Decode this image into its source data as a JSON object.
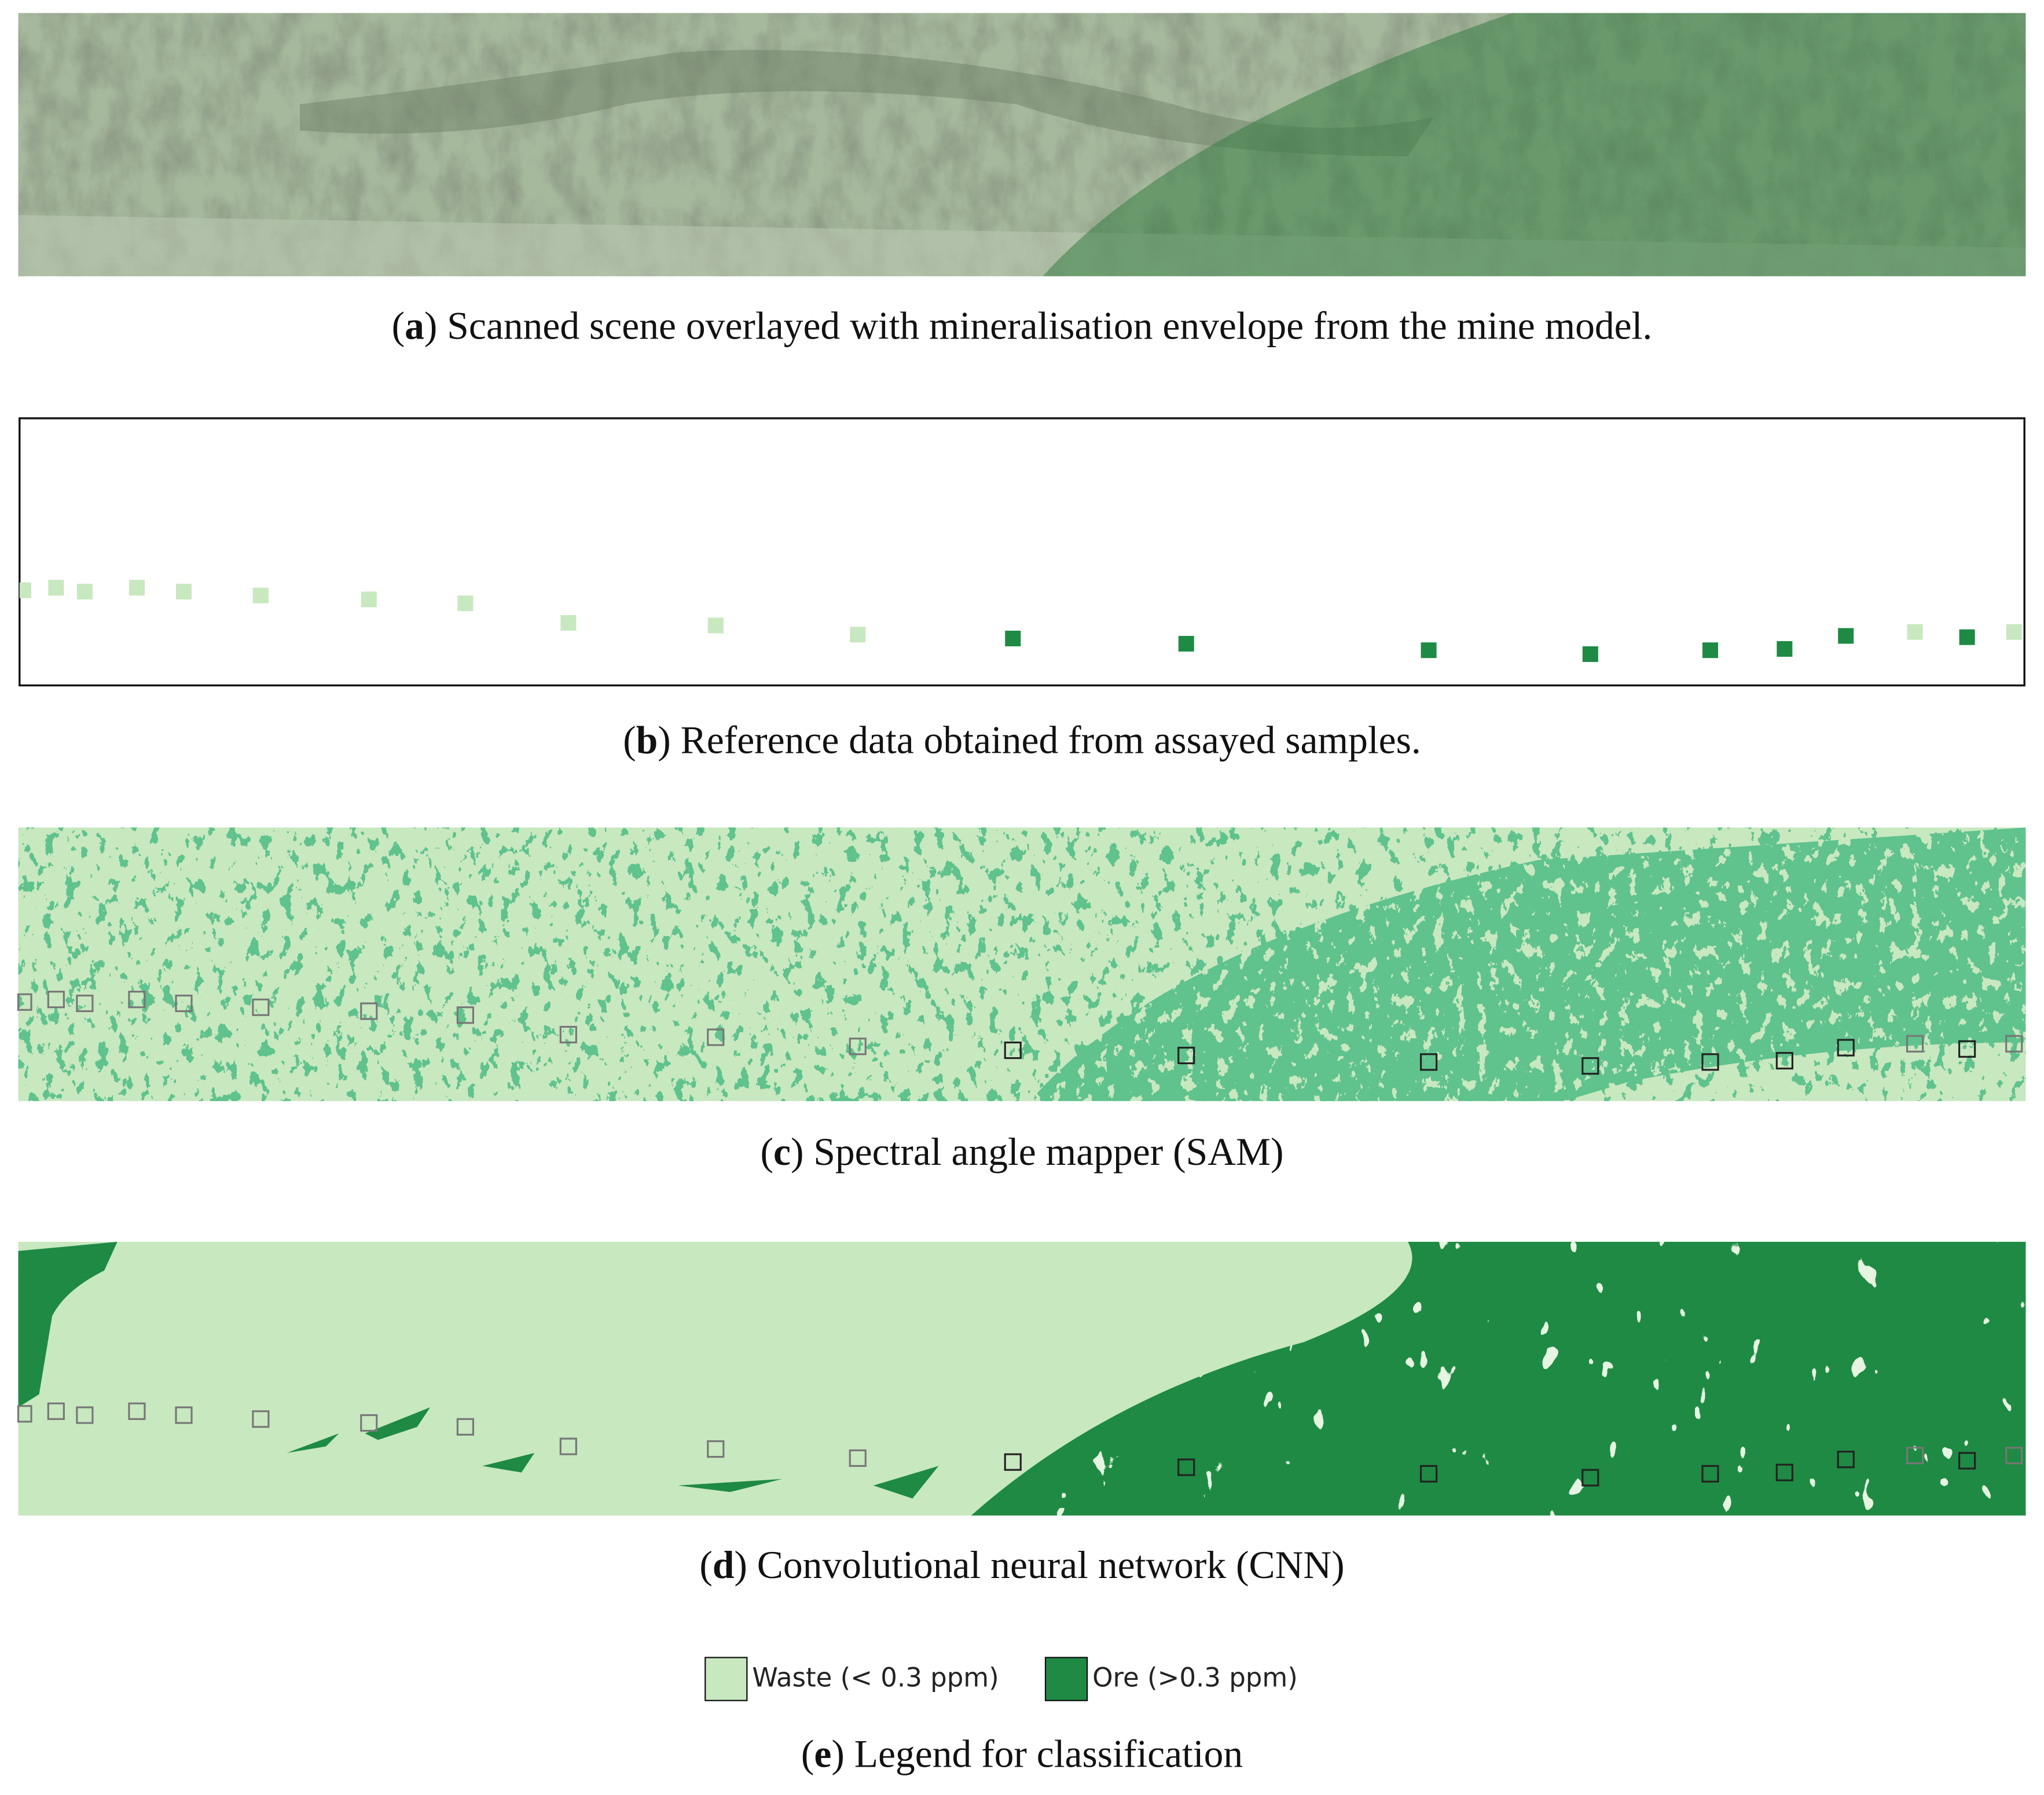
{
  "panels": [
    {
      "caption": [
        "(",
        "a",
        ") Scanned scene overlayed with mineralisation envelope from the mine model."
      ]
    },
    {
      "caption": [
        "(",
        "b",
        ") Reference data obtained from assayed samples."
      ]
    },
    {
      "caption": [
        "(",
        "c",
        ") Spectral angle mapper (SAM)"
      ]
    },
    {
      "caption": [
        "(",
        "d",
        ") Convolutional neural network (CNN)"
      ]
    },
    {
      "caption": [
        "(",
        "e",
        ") Legend for classification"
      ]
    }
  ],
  "legend": [
    {
      "label": "Waste (< 0.3 ppm)",
      "color": "#c8e8c0"
    },
    {
      "label": "Ore (>0.3 ppm)",
      "color": "#1e8a44"
    }
  ]
}
